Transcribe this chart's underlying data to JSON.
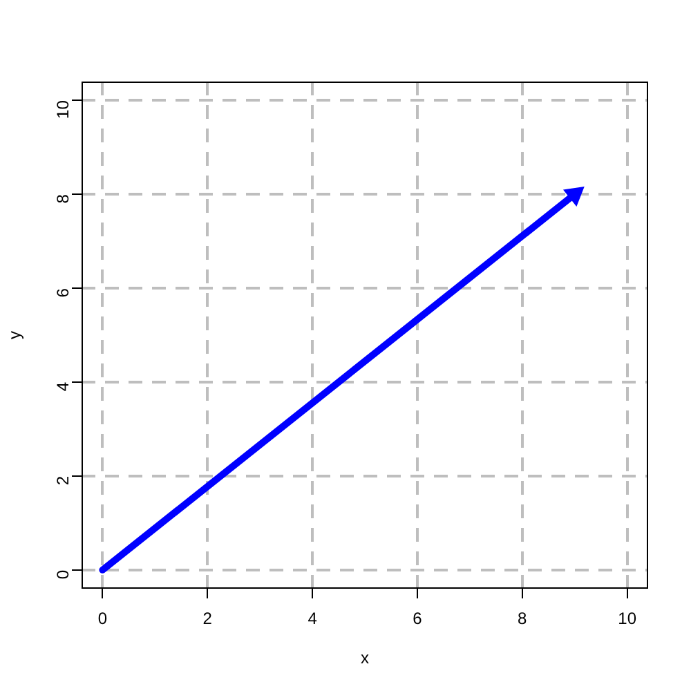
{
  "chart_data": {
    "type": "line",
    "x": [
      0,
      9
    ],
    "values": [
      0,
      8
    ],
    "color": "#0000ff",
    "marker": "triangle",
    "line_style": "solid",
    "xlim": [
      -0.4,
      10.4
    ],
    "ylim": [
      -0.4,
      10.4
    ],
    "xticks": [
      0,
      2,
      4,
      6,
      8,
      10
    ],
    "yticks": [
      0,
      2,
      4,
      6,
      8,
      10
    ],
    "xlabel": "x",
    "ylabel": "y",
    "grid": true
  }
}
